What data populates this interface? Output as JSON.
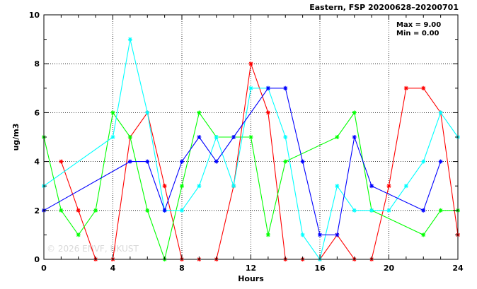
{
  "chart_data": {
    "type": "line",
    "title": "Eastern, FSP 20200628–20200701",
    "xlabel": "Hours",
    "ylabel": "ug/m3",
    "xlim": [
      0,
      24
    ],
    "ylim": [
      0,
      10
    ],
    "x_ticks": [
      0,
      4,
      8,
      12,
      16,
      20,
      24
    ],
    "y_ticks": [
      0,
      2,
      4,
      6,
      8,
      10
    ],
    "grid": true,
    "annotations": {
      "max": "Max = 9.00",
      "min": "Min = 0.00"
    },
    "watermark": "© 2026 ENVF, HKUST",
    "series": [
      {
        "color": "#ff0000",
        "x": [
          1,
          2,
          3,
          4,
          5,
          6,
          7,
          8,
          9,
          10,
          11,
          12,
          13,
          14,
          15,
          16,
          17,
          18,
          19,
          20,
          21,
          22,
          23,
          24
        ],
        "values": [
          4,
          2,
          0,
          0,
          5,
          6,
          3,
          0,
          0,
          0,
          3,
          8,
          6,
          0,
          0,
          0,
          1,
          0,
          0,
          3,
          7,
          7,
          6,
          1
        ]
      },
      {
        "color": "#00ff00",
        "x": [
          0,
          1,
          2,
          3,
          4,
          5,
          6,
          7,
          8,
          9,
          10,
          11,
          12,
          13,
          14,
          17,
          18,
          19,
          22,
          23,
          24
        ],
        "values": [
          5,
          2,
          1,
          2,
          6,
          5,
          2,
          0,
          3,
          6,
          5,
          5,
          5,
          1,
          4,
          5,
          6,
          2,
          1,
          2,
          2
        ]
      },
      {
        "color": "#00ffff",
        "x": [
          0,
          4,
          5,
          6,
          7,
          8,
          9,
          10,
          11,
          12,
          13,
          14,
          15,
          16,
          17,
          18,
          19,
          20,
          21,
          22,
          23,
          24
        ],
        "values": [
          3,
          5,
          9,
          6,
          2,
          2,
          3,
          5,
          3,
          7,
          7,
          5,
          1,
          0,
          3,
          2,
          2,
          2,
          3,
          4,
          6,
          5
        ]
      },
      {
        "color": "#0000ff",
        "x": [
          0,
          5,
          6,
          7,
          8,
          9,
          10,
          11,
          13,
          14,
          15,
          16,
          17,
          18,
          19,
          22,
          23
        ],
        "values": [
          2,
          4,
          4,
          2,
          4,
          5,
          4,
          5,
          7,
          7,
          4,
          1,
          1,
          5,
          3,
          2,
          4
        ]
      }
    ]
  }
}
